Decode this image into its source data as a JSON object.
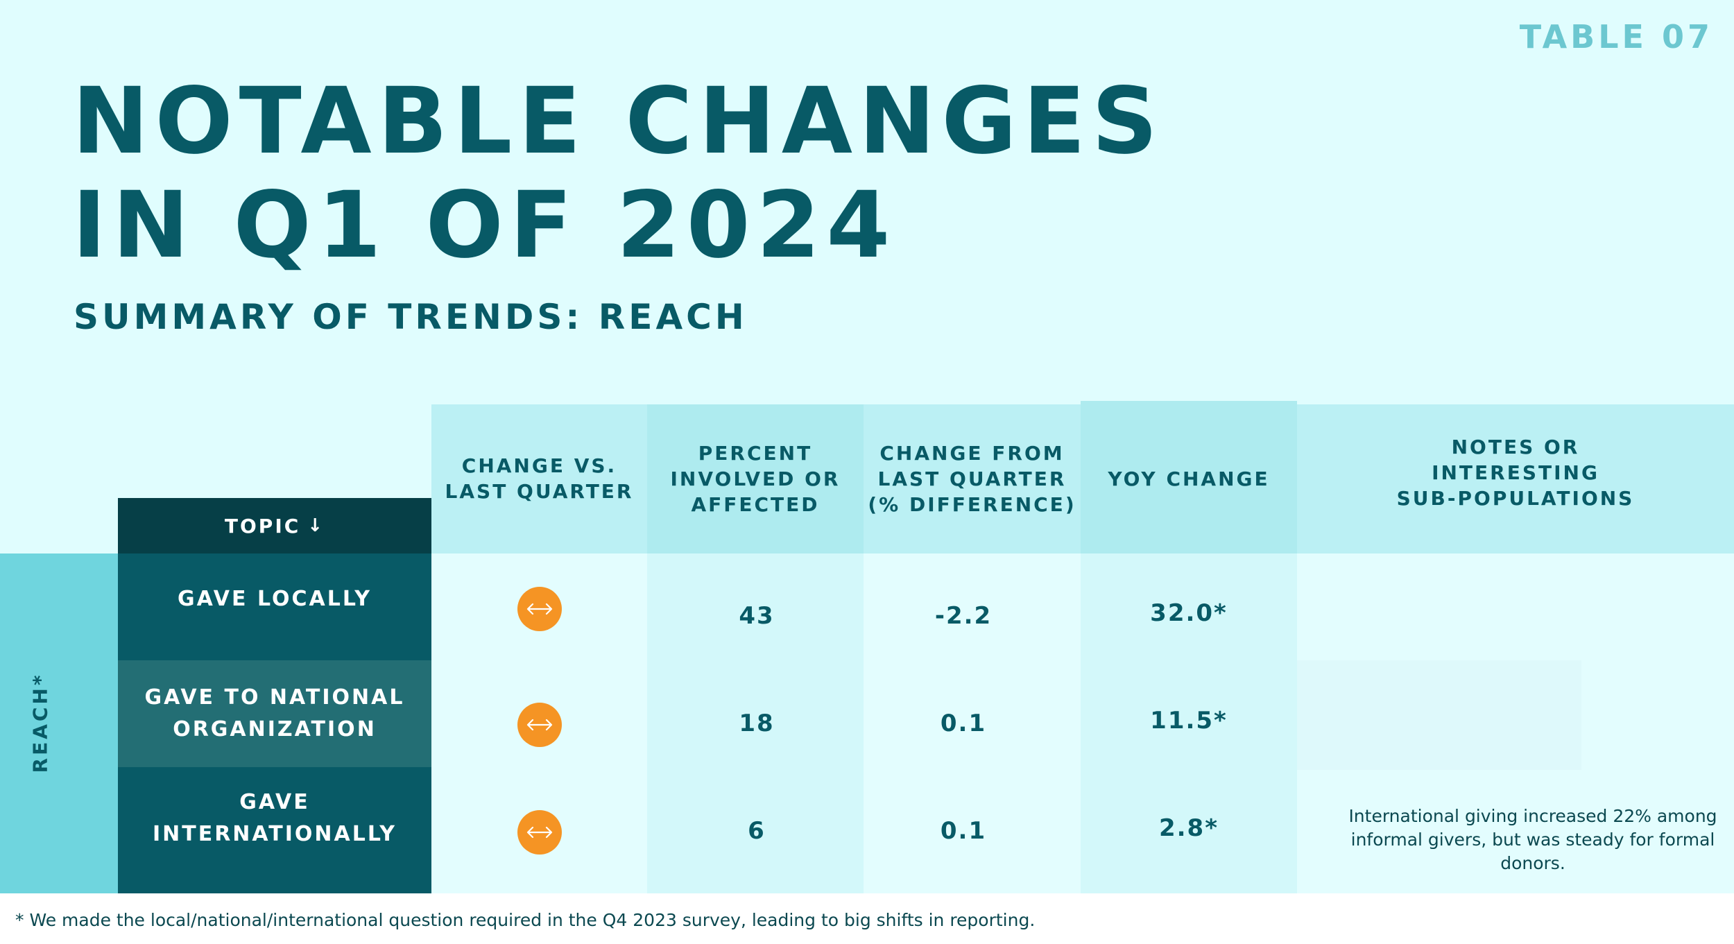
{
  "table_label": "TABLE 07",
  "title": {
    "line1": "NOTABLE CHANGES",
    "line2": "IN Q1 OF 2024"
  },
  "subtitle": "SUMMARY OF TRENDS: REACH",
  "headers": {
    "topic": "TOPIC",
    "change_vs": [
      "CHANGE VS.",
      "LAST QUARTER"
    ],
    "percent": [
      "PERCENT",
      "INVOLVED OR",
      "AFFECTED"
    ],
    "change_from": [
      "CHANGE FROM",
      "LAST QUARTER",
      "(% DIFFERENCE)"
    ],
    "yoy": "YOY CHANGE",
    "notes": [
      "NOTES OR",
      "INTERESTING",
      "SUB-POPULATIONS"
    ]
  },
  "group_label": "REACH*",
  "rows": [
    {
      "topic": [
        "GAVE LOCALLY"
      ],
      "change_icon": "horizontal-arrows-icon",
      "percent": "43",
      "change_from": "-2.2",
      "yoy": "32.0*",
      "note": ""
    },
    {
      "topic": [
        "GAVE TO NATIONAL",
        "ORGANIZATION"
      ],
      "change_icon": "horizontal-arrows-icon",
      "percent": "18",
      "change_from": "0.1",
      "yoy": "11.5*",
      "note": ""
    },
    {
      "topic": [
        "GAVE",
        "INTERNATIONALLY"
      ],
      "change_icon": "horizontal-arrows-icon",
      "percent": "6",
      "change_from": "0.1",
      "yoy": "2.8*",
      "note": "International giving increased 22% among informal givers, but was steady for formal donors."
    }
  ],
  "footnote": "* We made the local/national/international question required in the Q4 2023 survey, leading to big shifts in reporting.",
  "colors": {
    "dark_teal": "#063f47",
    "teal": "#085a66",
    "row_alt": "#236e74",
    "accent_orange": "#f59424",
    "group_bar": "#6fd5de"
  }
}
